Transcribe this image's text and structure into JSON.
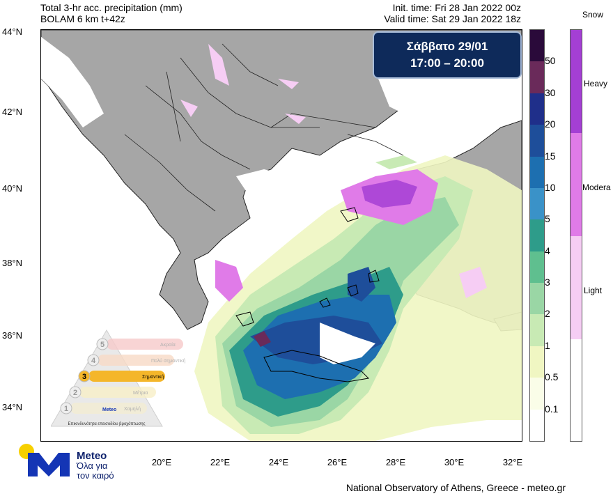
{
  "header": {
    "title": "Total 3-hr acc. precipitation (mm)",
    "model": "BOLAM 6 km t+42z",
    "init_time": "Init. time: Fri 28 Jan 2022 00z",
    "valid_time": "Valid time: Sat 29 Jan 2022 18z"
  },
  "date_box": {
    "day": "Σάββατο 29/01",
    "hours": "17:00 – 20:00"
  },
  "axes": {
    "lat_labels": [
      "44°N",
      "42°N",
      "40°N",
      "38°N",
      "36°N",
      "34°N"
    ],
    "lon_labels": [
      "20°E",
      "22°E",
      "24°E",
      "26°E",
      "28°E",
      "30°E",
      "32°E"
    ]
  },
  "precip_scale": {
    "labels": [
      "50",
      "30",
      "20",
      "15",
      "10",
      "5",
      "4",
      "3",
      "2",
      "1",
      "0.5",
      "0.1"
    ],
    "colors": [
      "#2a0a3a",
      "#6a2a5a",
      "#1f2f8a",
      "#1e4e9a",
      "#1d6fb0",
      "#3a92c8",
      "#2e9c8a",
      "#5fbf8f",
      "#9ad6a5",
      "#c8eab4",
      "#f0f6c2",
      "#fafde8",
      "#ffffff"
    ]
  },
  "snow_scale": {
    "title": "Snow",
    "labels": [
      "Heavy",
      "Modera",
      "Light"
    ],
    "colors": [
      "#a43fd4",
      "#e07be8",
      "#f6cdf4",
      "#ffffff"
    ]
  },
  "pyramid_levels": [
    {
      "num": "5",
      "label": "Ακραία"
    },
    {
      "num": "4",
      "label": "Πολύ σημαντική"
    },
    {
      "num": "3",
      "label": "Σημαντική"
    },
    {
      "num": "2",
      "label": "Μέτρια"
    },
    {
      "num": "1",
      "label": "Χαμηλή"
    }
  ],
  "pyramid_caption": "Επικινδυνότητα επεισοδίου βροχόπτωσης",
  "pyramid_logo": "Meteo",
  "logo": {
    "name": "Meteo",
    "slogan_line1": "Όλα για",
    "slogan_line2": "τον καιρό"
  },
  "footer": "National Observatory of Athens, Greece - meteo.gr"
}
